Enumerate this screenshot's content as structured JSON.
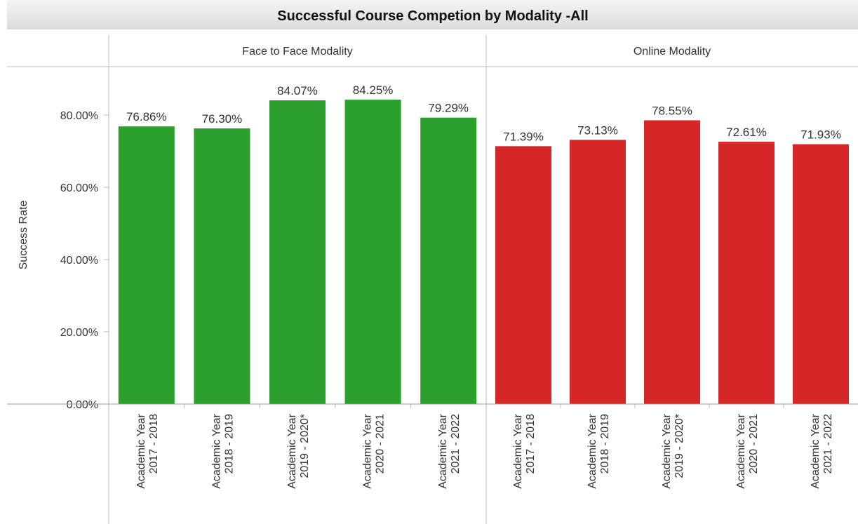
{
  "chart_data": {
    "type": "bar",
    "title": "Successful Course Competion by Modality -All",
    "y_label": "Success Rate",
    "ylim": [
      0,
      93.4
    ],
    "yticks": [
      {
        "value": 0,
        "label": "0.00%"
      },
      {
        "value": 20,
        "label": "20.00%"
      },
      {
        "value": 40,
        "label": "40.00%"
      },
      {
        "value": 60,
        "label": "60.00%"
      },
      {
        "value": 80,
        "label": "80.00%"
      }
    ],
    "panels": [
      {
        "name": "Face to Face Modality",
        "color": "#2ca02c",
        "categories": [
          "Academic Year\n2017 - 2018",
          "Academic Year\n2018 - 2019",
          "Academic Year\n2019 - 2020*",
          "Academic Year\n2020 - 2021",
          "Academic Year\n2021 - 2022"
        ],
        "values": [
          76.86,
          76.3,
          84.07,
          84.25,
          79.29
        ],
        "value_labels": [
          "76.86%",
          "76.30%",
          "84.07%",
          "84.25%",
          "79.29%"
        ]
      },
      {
        "name": "Online Modality",
        "color": "#d62728",
        "categories": [
          "Academic Year\n2017 - 2018",
          "Academic Year\n2018 - 2019",
          "Academic Year\n2019 - 2020*",
          "Academic Year\n2020 - 2021",
          "Academic Year\n2021 - 2022"
        ],
        "values": [
          71.39,
          73.13,
          78.55,
          72.61,
          71.93
        ],
        "value_labels": [
          "71.39%",
          "73.13%",
          "78.55%",
          "72.61%",
          "71.93%"
        ]
      }
    ]
  }
}
